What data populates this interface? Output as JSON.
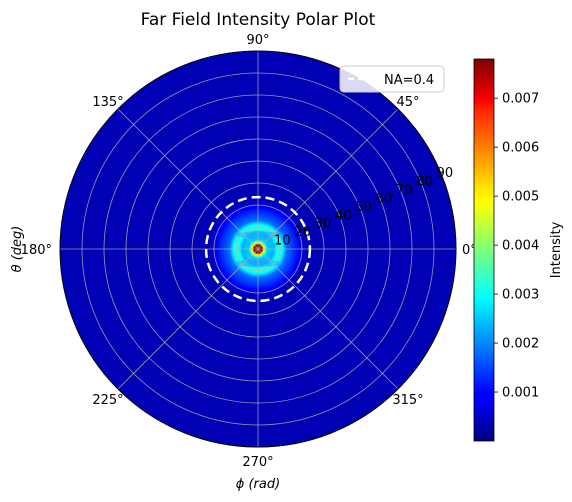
{
  "chart_data": {
    "type": "heatmap",
    "projection": "polar",
    "title": "Far Field Intensity Polar Plot",
    "xlabel": "ϕ (rad)",
    "ylabel": "θ (deg)",
    "angular_tick_labels": [
      "0°",
      "45°",
      "90°",
      "135°",
      "180°",
      "225°",
      "270°",
      "315°"
    ],
    "angular_ticks_deg": [
      0,
      45,
      90,
      135,
      180,
      225,
      270,
      315
    ],
    "radial_ticks": [
      10,
      20,
      30,
      40,
      50,
      60,
      70,
      80,
      90
    ],
    "radial_tick_labels": [
      "10",
      "20",
      "30",
      "40",
      "50",
      "60",
      "70",
      "80",
      "90"
    ],
    "rlim": [
      0,
      90
    ],
    "grid": true,
    "colormap": "jet",
    "colorbar": {
      "label": "Intensity",
      "range": [
        0.0,
        0.0078
      ],
      "ticks": [
        0.001,
        0.002,
        0.003,
        0.004,
        0.005,
        0.006,
        0.007
      ],
      "tick_labels": [
        "0.001",
        "0.002",
        "0.003",
        "0.004",
        "0.005",
        "0.006",
        "0.007"
      ]
    },
    "series": [
      {
        "name": "NA=0.4",
        "type": "circle",
        "r_deg": 23.6,
        "style": "dashed",
        "color": "#ffffff"
      }
    ],
    "legend": {
      "position": "top-right",
      "entries": [
        "NA=0.4"
      ]
    },
    "intensity_profile": {
      "peak": 0.0078,
      "core_halfwidth_deg": 3,
      "ring_radius_deg": 10,
      "ring_level": 0.0032,
      "halo_level": 0.0022,
      "halo_extent_deg": 22,
      "tail_extent_deg": 40
    }
  }
}
